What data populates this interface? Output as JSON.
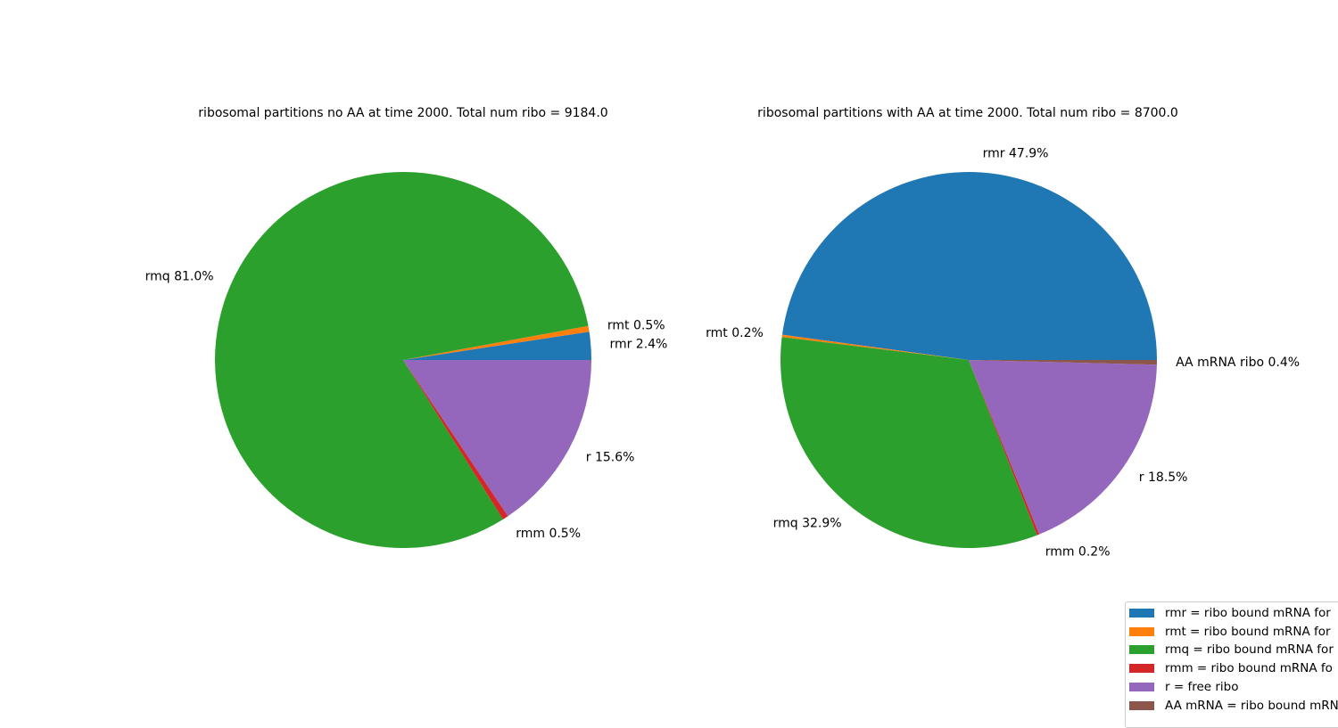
{
  "chart_data": [
    {
      "type": "pie",
      "title": "ribosomal partitions no AA at time 2000. Total num ribo = 9184.0",
      "slices": [
        {
          "label": "rmr",
          "percent": 2.4,
          "display": "rmr 2.4%",
          "color": "#1f77b4"
        },
        {
          "label": "rmt",
          "percent": 0.5,
          "display": "rmt 0.5%",
          "color": "#ff7f0e"
        },
        {
          "label": "rmq",
          "percent": 81.0,
          "display": "rmq 81.0%",
          "color": "#2ca02c"
        },
        {
          "label": "rmm",
          "percent": 0.5,
          "display": "rmm 0.5%",
          "color": "#d62728"
        },
        {
          "label": "r",
          "percent": 15.6,
          "display": "r 15.6%",
          "color": "#9467bd"
        }
      ]
    },
    {
      "type": "pie",
      "title": "ribosomal partitions with AA at time 2000. Total num ribo = 8700.0",
      "slices": [
        {
          "label": "rmr",
          "percent": 47.9,
          "display": "rmr 47.9%",
          "color": "#1f77b4"
        },
        {
          "label": "rmt",
          "percent": 0.2,
          "display": "rmt 0.2%",
          "color": "#ff7f0e"
        },
        {
          "label": "rmq",
          "percent": 32.9,
          "display": "rmq 32.9%",
          "color": "#2ca02c"
        },
        {
          "label": "rmm",
          "percent": 0.2,
          "display": "rmm 0.2%",
          "color": "#d62728"
        },
        {
          "label": "r",
          "percent": 18.5,
          "display": "r 18.5%",
          "color": "#9467bd"
        },
        {
          "label": "AA mRNA ribo",
          "percent": 0.4,
          "display": "AA mRNA ribo 0.4%",
          "color": "#8c564b"
        }
      ]
    }
  ],
  "legend": {
    "entries": [
      {
        "text": "rmr = ribo bound mRNA for",
        "color": "#1f77b4"
      },
      {
        "text": "rmt = ribo bound mRNA for",
        "color": "#ff7f0e"
      },
      {
        "text": "rmq = ribo bound mRNA for",
        "color": "#2ca02c"
      },
      {
        "text": "rmm = ribo bound mRNA fo",
        "color": "#d62728"
      },
      {
        "text": "r = free ribo",
        "color": "#9467bd"
      },
      {
        "text": "AA mRNA = ribo bound mRN",
        "color": "#8c564b"
      }
    ]
  }
}
